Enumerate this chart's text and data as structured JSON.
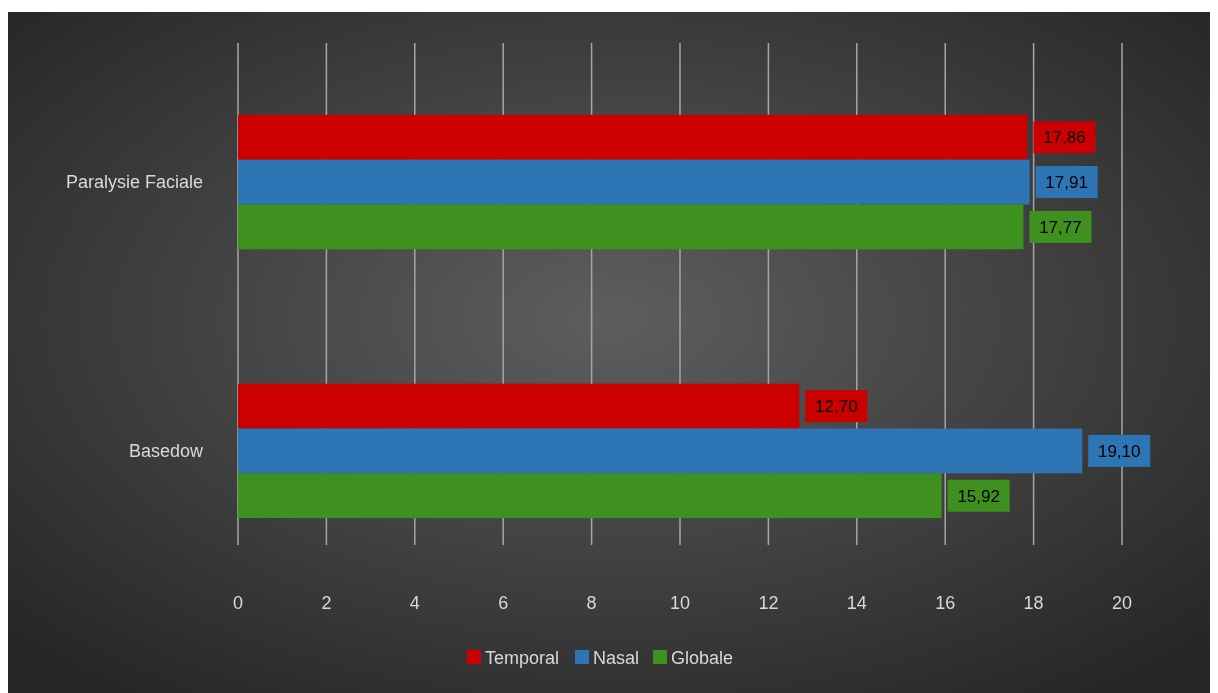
{
  "chart_data": {
    "type": "bar",
    "orientation": "horizontal",
    "categories": [
      "Paralysie Faciale",
      "Basedow"
    ],
    "series": [
      {
        "name": "Temporal",
        "color": "#cc0000",
        "values": [
          17.86,
          12.7
        ],
        "value_labels": [
          "17,86",
          "12,70"
        ]
      },
      {
        "name": "Nasal",
        "color": "#2e75b6",
        "values": [
          17.91,
          19.1
        ],
        "value_labels": [
          "17,91",
          "19,10"
        ]
      },
      {
        "name": "Globale",
        "color": "#3f911f",
        "values": [
          17.77,
          15.92
        ],
        "value_labels": [
          "17,77",
          "15,92"
        ]
      }
    ],
    "xlim": [
      0,
      20
    ],
    "xticks": [
      0,
      2,
      4,
      6,
      8,
      10,
      12,
      14,
      16,
      18,
      20
    ],
    "grid": "x",
    "legend": "bottom"
  }
}
